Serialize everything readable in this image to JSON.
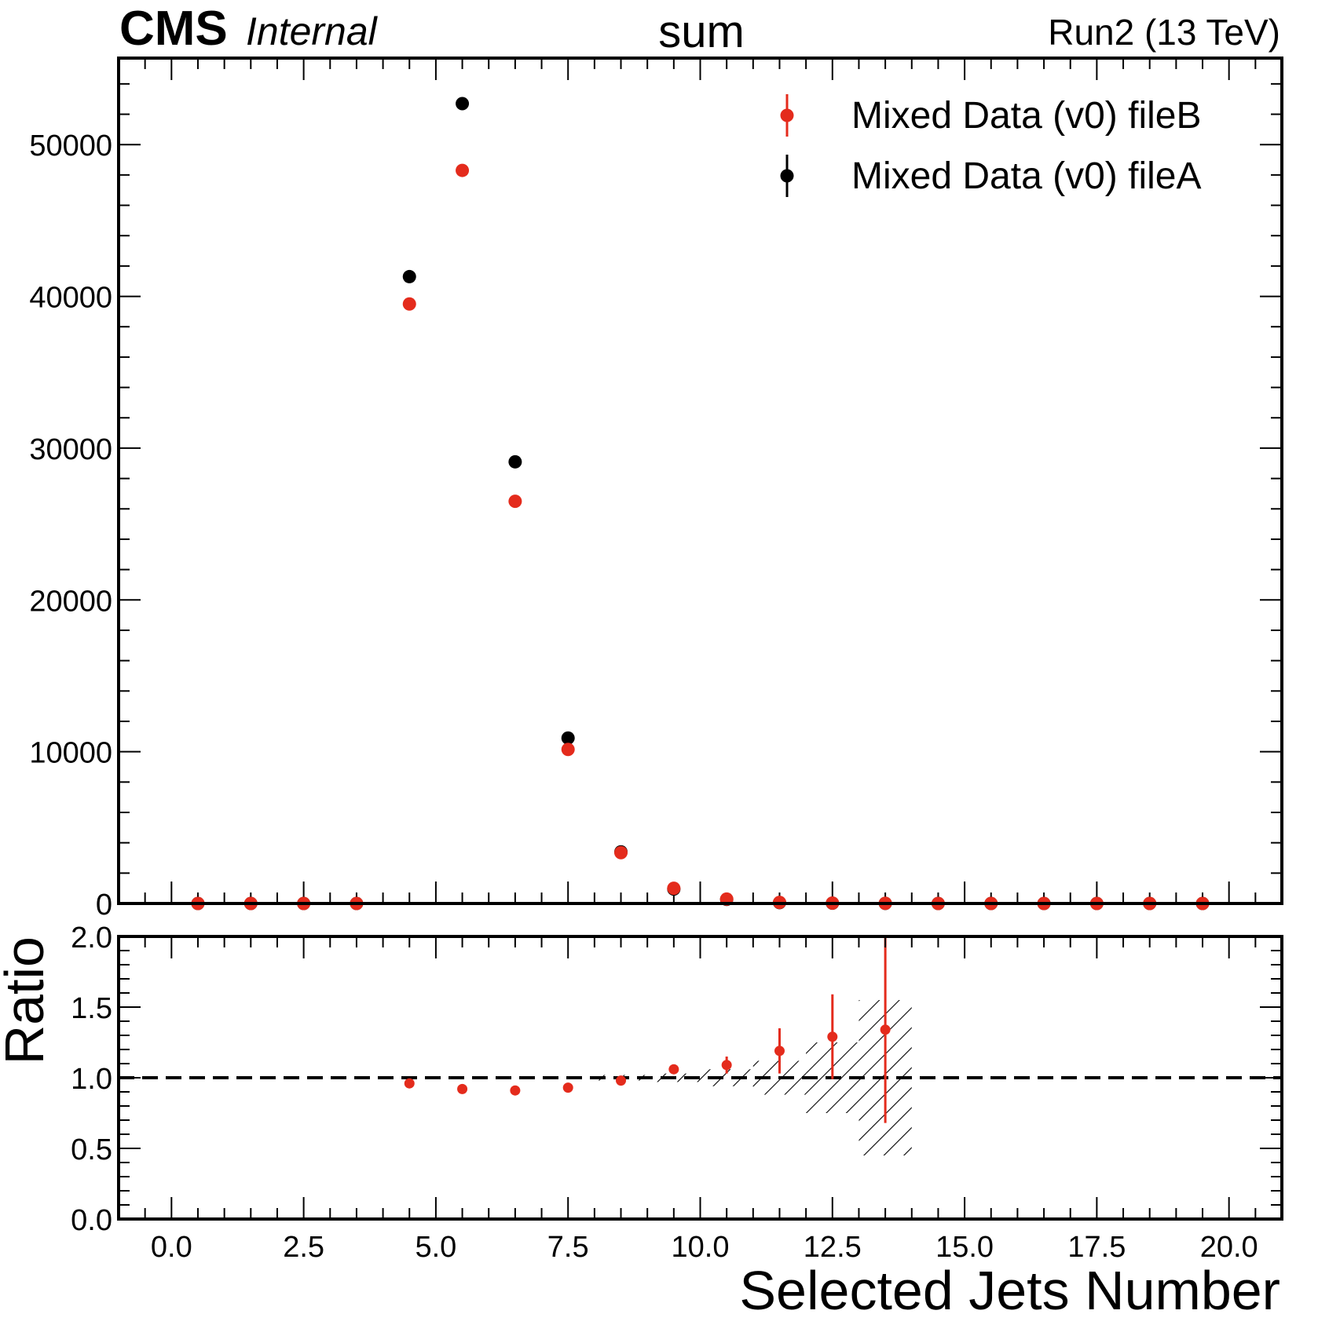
{
  "header": {
    "cms_label": "CMS",
    "internal_label": "Internal",
    "title": "sum",
    "run_label": "Run2 (13 TeV)"
  },
  "chart_data": [
    {
      "type": "scatter",
      "panel": "main",
      "x": [
        0.5,
        1.5,
        2.5,
        3.5,
        4.5,
        5.5,
        6.5,
        7.5,
        8.5,
        9.5,
        10.5,
        11.5,
        12.5,
        13.5,
        14.5,
        15.5,
        16.5,
        17.5,
        18.5,
        19.5
      ],
      "series": [
        {
          "name": "Mixed Data (v0) fileB",
          "color": "#e42b1c",
          "values": [
            0,
            0,
            0,
            0,
            39500,
            48300,
            26500,
            10150,
            3350,
            1000,
            290,
            70,
            25,
            10,
            0,
            0,
            0,
            0,
            0,
            0
          ]
        },
        {
          "name": "Mixed Data (v0) fileA",
          "color": "#000000",
          "values": [
            0,
            0,
            0,
            0,
            41300,
            52700,
            29100,
            10900,
            3400,
            950,
            270,
            60,
            20,
            8,
            0,
            0,
            0,
            0,
            0,
            0
          ]
        }
      ],
      "xlim": [
        -1,
        21
      ],
      "ylim": [
        0,
        55700
      ],
      "yticks": [
        "0",
        "10000",
        "20000",
        "30000",
        "40000",
        "50000"
      ],
      "xlabel": "",
      "ylabel": "",
      "legend_position": "top-right",
      "grid": false
    },
    {
      "type": "scatter",
      "panel": "ratio",
      "x": [
        4.5,
        5.5,
        6.5,
        7.5,
        8.5,
        9.5,
        10.5,
        11.5,
        12.5,
        13.5
      ],
      "series": [
        {
          "name": "",
          "color": "#e42b1c",
          "values": [
            0.96,
            0.92,
            0.91,
            0.93,
            0.98,
            1.06,
            1.09,
            1.19,
            1.29,
            1.34
          ],
          "errors": [
            0.005,
            0.005,
            0.006,
            0.01,
            0.017,
            0.03,
            0.06,
            0.16,
            0.3,
            0.66
          ]
        }
      ],
      "uncertainty_band": {
        "x_edges": [
          8,
          9,
          10,
          11,
          12,
          13,
          14
        ],
        "half_widths": [
          0.02,
          0.03,
          0.06,
          0.12,
          0.25,
          0.55
        ]
      },
      "reference_line": 1.0,
      "xlim": [
        -1,
        21
      ],
      "ylim": [
        0,
        2
      ],
      "yticks": [
        "0.0",
        "0.5",
        "1.0",
        "1.5",
        "2.0"
      ],
      "xticks": [
        "0.0",
        "2.5",
        "5.0",
        "7.5",
        "10.0",
        "12.5",
        "15.0",
        "17.5",
        "20.0"
      ],
      "xlabel": "Selected Jets Number",
      "ylabel": "Ratio",
      "grid": false
    }
  ]
}
